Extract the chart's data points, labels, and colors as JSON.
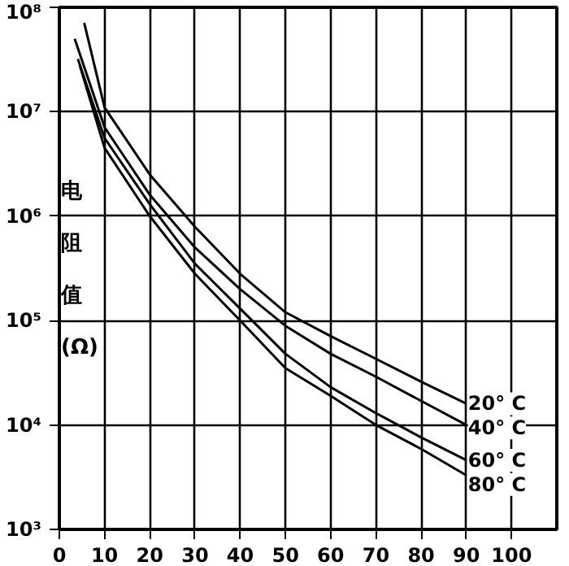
{
  "chart_data": {
    "type": "line",
    "ylabel": "电阻值(Ω)",
    "log": "y",
    "grid": true,
    "legend": false,
    "marker": "none",
    "line_style": "solid",
    "xlim": [
      0,
      110
    ],
    "xticks": [
      0,
      10,
      20,
      30,
      40,
      50,
      60,
      70,
      80,
      90,
      100
    ],
    "ylim": [
      1000,
      100000000
    ],
    "yticks": [
      {
        "value": 1000,
        "label": "10³"
      },
      {
        "value": 10000,
        "label": "10⁴"
      },
      {
        "value": 100000,
        "label": "10⁵"
      },
      {
        "value": 1000000,
        "label": "10⁶"
      },
      {
        "value": 10000000,
        "label": "10⁷"
      },
      {
        "value": 100000000,
        "label": "10⁸"
      }
    ],
    "series": [
      {
        "name": "20° C",
        "color": "#000000",
        "x": [
          5.5,
          10,
          20,
          30,
          40,
          50,
          60,
          70,
          80,
          90
        ],
        "values": [
          71000000,
          11000000,
          2500000,
          790000,
          280000,
          120000,
          71000,
          43000,
          26000,
          16000
        ]
      },
      {
        "name": "40° C",
        "color": "#000000",
        "x": [
          3.4,
          10,
          20,
          30,
          40,
          50,
          60,
          70,
          80,
          90
        ],
        "values": [
          50000000,
          7100000,
          1600000,
          500000,
          200000,
          89000,
          48000,
          29000,
          17000,
          10000
        ]
      },
      {
        "name": "60° C",
        "color": "#000000",
        "x": [
          4.1,
          10,
          20,
          30,
          40,
          50,
          60,
          70,
          80,
          90
        ],
        "values": [
          32000000,
          5600000,
          1300000,
          350000,
          130000,
          48000,
          23000,
          13000,
          7600,
          4600
        ]
      },
      {
        "name": "80° C",
        "color": "#000000",
        "x": [
          4.5,
          10,
          20,
          30,
          40,
          50,
          60,
          70,
          80,
          90
        ],
        "values": [
          28000000,
          4500000,
          1000000,
          280000,
          100000,
          35000,
          19000,
          10000,
          5900,
          3300
        ]
      }
    ]
  }
}
